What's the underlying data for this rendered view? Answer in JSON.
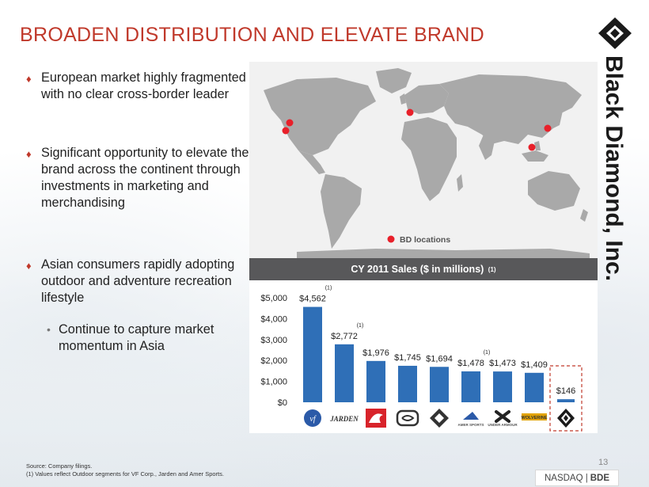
{
  "title": "BROADEN DISTRIBUTION AND ELEVATE BRAND",
  "bullets": [
    {
      "text": "European market highly fragmented with no clear cross-border leader"
    },
    {
      "text": "Significant opportunity to elevate the brand across the continent through investments in marketing and merchandising"
    },
    {
      "text": "Asian consumers rapidly adopting outdoor and adventure recreation lifestyle"
    }
  ],
  "sub_bullet": "Continue to capture market momentum in Asia",
  "map": {
    "legend": "BD locations",
    "marker_color": "#e8202a",
    "land_color": "#a9a9a9"
  },
  "chart_header": {
    "title": "CY 2011 Sales ($ in millions)",
    "note": "(1)"
  },
  "chart_data": {
    "type": "bar",
    "title": "CY 2011 Sales ($ in millions) (1)",
    "categories": [
      "vf",
      "JARDEN",
      "Quiksilver",
      "Billabong",
      "Columbia",
      "Amer Sports",
      "Under Armour",
      "Wolverine",
      "Black Diamond"
    ],
    "values": [
      4562,
      2772,
      1976,
      1745,
      1694,
      1478,
      1473,
      1409,
      146
    ],
    "value_labels": [
      "$4,562",
      "$2,772",
      "$1,976",
      "$1,745",
      "$1,694",
      "$1,478",
      "$1,473",
      "$1,409",
      "$146"
    ],
    "footnotes": [
      "(1)",
      "(1)",
      "",
      "",
      "",
      "(1)",
      "",
      "",
      ""
    ],
    "ylim": [
      0,
      5000
    ],
    "yticks": [
      "$0",
      "$1,000",
      "$2,000",
      "$3,000",
      "$4,000",
      "$5,000"
    ],
    "bar_color": "#2f6fb7",
    "highlight_color": "#c0392b"
  },
  "logos": [
    "vf",
    "JARDEN",
    "",
    "",
    "",
    "AMER SPORTS",
    "UNDER ARMOUR",
    "WOLVERINE",
    ""
  ],
  "source": "Source: Company filings.",
  "footnote": "(1)    Values reflect Outdoor segments for VF Corp., Jarden and Amer Sports.",
  "page_number": "13",
  "nasdaq": {
    "exchange": "NASDAQ |",
    "ticker": "BDE"
  },
  "brand": {
    "name": "Black Diamond, Inc."
  }
}
